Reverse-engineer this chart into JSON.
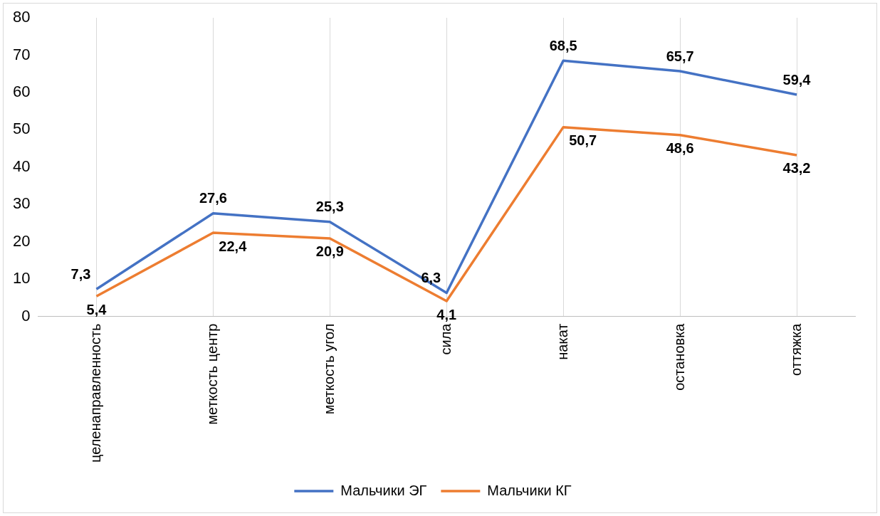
{
  "chart_data": {
    "type": "line",
    "categories": [
      "целенаправленность",
      "меткость центр",
      "меткость угол",
      "сила",
      "накат",
      "остановка",
      "оттяжка"
    ],
    "series": [
      {
        "name": "Мальчики ЭГ",
        "color": "#4472c4",
        "values": [
          7.3,
          27.6,
          25.3,
          6.3,
          68.5,
          65.7,
          59.4
        ],
        "value_labels": [
          "7,3",
          "27,6",
          "25,3",
          "6,3",
          "68,5",
          "65,7",
          "59,4"
        ]
      },
      {
        "name": "Мальчики КГ",
        "color": "#ed7d31",
        "values": [
          5.4,
          22.4,
          20.9,
          4.1,
          50.7,
          48.6,
          43.2
        ],
        "value_labels": [
          "5,4",
          "22,4",
          "20,9",
          "4,1",
          "50,7",
          "48,6",
          "43,2"
        ]
      }
    ],
    "ylim": [
      0,
      80
    ],
    "yticks": [
      0,
      10,
      20,
      30,
      40,
      50,
      60,
      70,
      80
    ],
    "grid": "x",
    "legend": "bottom",
    "marker": "none",
    "line_style": "solid"
  }
}
